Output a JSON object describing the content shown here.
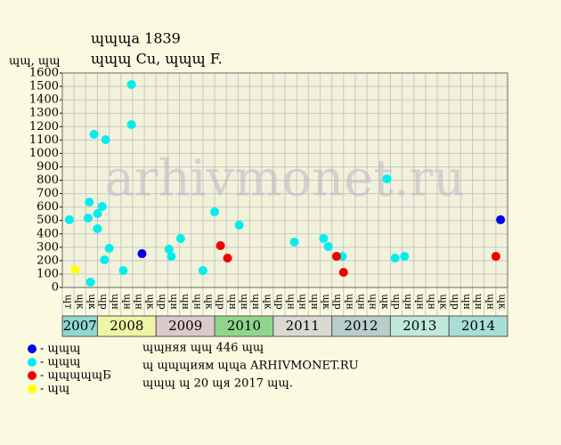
{
  "chart_data": {
    "type": "scatter",
    "title": "ɰɰɰa 1839",
    "subtitle": "ɰɰɰ Cu, ɰɰɰ F.",
    "y_label": "ɰɰ, ɰɰ",
    "watermark": "arhivmonet.ru",
    "xlim": [
      0,
      38
    ],
    "ylim": [
      0,
      1600
    ],
    "yticks": [
      0,
      100,
      200,
      300,
      400,
      500,
      600,
      700,
      800,
      900,
      1000,
      1100,
      1200,
      1300,
      1400,
      1500,
      1600
    ],
    "grid": true,
    "columns": [
      "ɰт",
      "ɰк",
      "ɰк",
      "ɰр",
      "ɰн",
      "ɰн",
      "ɰн",
      "ɰк",
      "ɰр",
      "ɰн",
      "ɰн",
      "ɰн",
      "ɰк",
      "ɰр",
      "ɰн",
      "ɰн",
      "ɰн",
      "ɰк",
      "ɰр",
      "ɰн",
      "ɰн",
      "ɰн",
      "ɰк",
      "ɰр",
      "ɰн",
      "ɰн",
      "ɰн",
      "ɰк",
      "ɰр",
      "ɰн",
      "ɰн",
      "ɰн",
      "ɰк",
      "ɰр",
      "ɰн",
      "ɰн",
      "ɰн",
      "ɰк"
    ],
    "years": [
      {
        "label": "2007",
        "start": 0,
        "end": 3,
        "color": "#8fd8cf"
      },
      {
        "label": "2008",
        "start": 3,
        "end": 8,
        "color": "#eef6a6"
      },
      {
        "label": "2009",
        "start": 8,
        "end": 13,
        "color": "#dccaca"
      },
      {
        "label": "2010",
        "start": 13,
        "end": 18,
        "color": "#8fd68c"
      },
      {
        "label": "2011",
        "start": 18,
        "end": 23,
        "color": "#d9d9d2"
      },
      {
        "label": "2012",
        "start": 23,
        "end": 28,
        "color": "#b9cdca"
      },
      {
        "label": "2013",
        "start": 28,
        "end": 33,
        "color": "#bfe9d9"
      },
      {
        "label": "2014",
        "start": 33,
        "end": 38,
        "color": "#a9ddd8"
      }
    ],
    "series": [
      {
        "name": "- ɰɰɰ",
        "color": "#0000ee",
        "x": [
          6.8,
          37.4
        ],
        "values": [
          252,
          505
        ]
      },
      {
        "name": "- ɰɰɰ",
        "color": "#00eeee",
        "x": [
          0.6,
          2.3,
          2.2,
          2.4,
          2.7,
          3.0,
          3.0,
          3.4,
          3.7,
          3.6,
          4.0,
          5.2,
          5.9,
          5.9,
          9.1,
          9.3,
          10.1,
          12.0,
          13.0,
          15.1,
          19.8,
          22.3,
          22.7,
          23.9,
          27.7,
          28.4,
          29.2
        ],
        "values": [
          505,
          637,
          518,
          40,
          1142,
          438,
          551,
          604,
          1102,
          206,
          292,
          126,
          1514,
          1215,
          286,
          232,
          365,
          126,
          564,
          465,
          339,
          365,
          305,
          232,
          810,
          219,
          232
        ]
      },
      {
        "name": "- ɰɰɰɰɰБ",
        "color": "#ee0000",
        "x": [
          13.5,
          14.1,
          23.4,
          24.0,
          37.0
        ],
        "values": [
          312,
          219,
          232,
          113,
          232
        ]
      },
      {
        "name": "- ɰɰ",
        "color": "#ffff00",
        "x": [
          1.1
        ],
        "values": [
          133
        ]
      }
    ],
    "notes": [
      "ɰɰняя ɰɰ 446 ɰɰ",
      "ɰ ɰɰɰиям ɰɰa ARHIVMONET.RU",
      "ɰɰɰ ɰ 20 ɰя 2017 ɰɰ."
    ]
  }
}
